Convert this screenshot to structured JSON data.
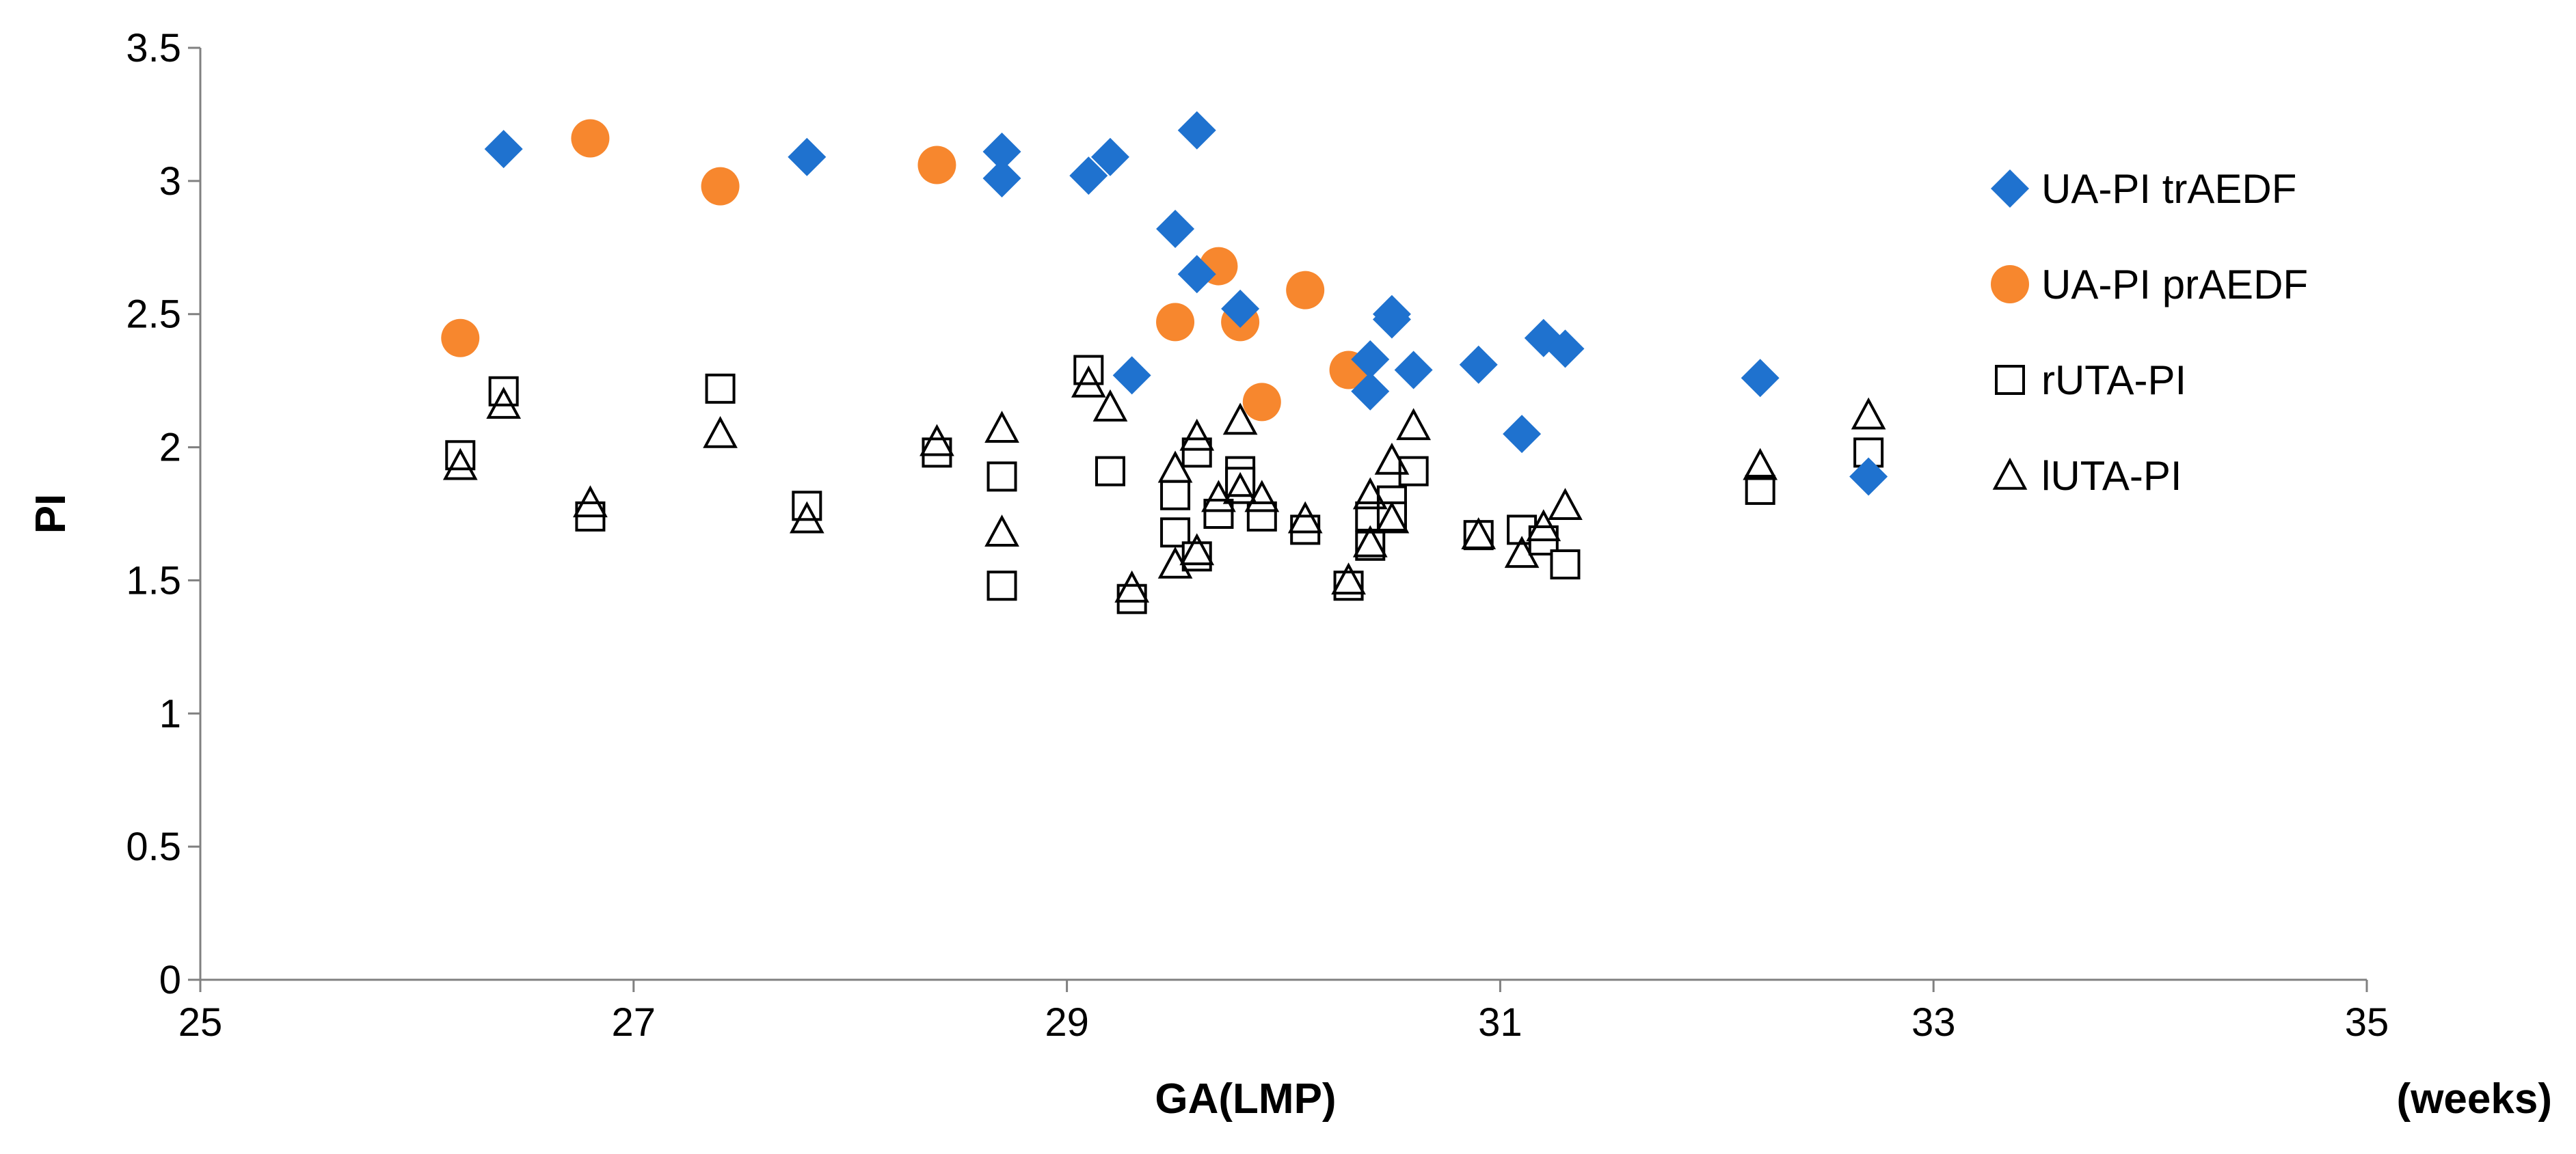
{
  "chart_data": {
    "type": "scatter",
    "title": "",
    "xlabel": "GA(LMP)",
    "xlabel_unit": "(weeks)",
    "ylabel": "PI",
    "xlim": [
      25,
      35
    ],
    "ylim": [
      0,
      3.5
    ],
    "x_ticks": [
      25,
      27,
      29,
      31,
      33,
      35
    ],
    "y_ticks": [
      0,
      0.5,
      1,
      1.5,
      2,
      2.5,
      3,
      3.5
    ],
    "x_tick_labels": [
      "25",
      "27",
      "29",
      "31",
      "33",
      "35"
    ],
    "y_tick_labels": [
      "0",
      "0.5",
      "1",
      "1.5",
      "2",
      "2.5",
      "3",
      "3.5"
    ],
    "grid": false,
    "legend_position": "right",
    "series": [
      {
        "name": "UA-PI trAEDF",
        "marker": "diamond",
        "color": "#1F72CF",
        "filled": true,
        "points": [
          [
            26.4,
            3.12
          ],
          [
            27.8,
            3.09
          ],
          [
            28.7,
            3.11
          ],
          [
            28.7,
            3.01
          ],
          [
            29.1,
            3.02
          ],
          [
            29.2,
            3.09
          ],
          [
            29.3,
            2.27
          ],
          [
            29.5,
            2.82
          ],
          [
            29.6,
            3.19
          ],
          [
            29.6,
            2.65
          ],
          [
            29.8,
            2.52
          ],
          [
            30.4,
            2.33
          ],
          [
            30.4,
            2.21
          ],
          [
            30.5,
            2.5
          ],
          [
            30.5,
            2.48
          ],
          [
            30.6,
            2.29
          ],
          [
            30.9,
            2.31
          ],
          [
            31.1,
            2.05
          ],
          [
            31.2,
            2.41
          ],
          [
            31.3,
            2.37
          ],
          [
            32.2,
            2.26
          ],
          [
            32.7,
            1.89
          ]
        ]
      },
      {
        "name": "UA-PI prAEDF",
        "marker": "circle",
        "color": "#F7872E",
        "filled": true,
        "points": [
          [
            26.2,
            2.41
          ],
          [
            26.8,
            3.16
          ],
          [
            27.4,
            2.98
          ],
          [
            28.4,
            3.06
          ],
          [
            29.5,
            2.47
          ],
          [
            29.7,
            2.68
          ],
          [
            29.8,
            2.47
          ],
          [
            29.9,
            2.17
          ],
          [
            30.1,
            2.59
          ],
          [
            30.3,
            2.29
          ]
        ]
      },
      {
        "name": "rUTA-PI",
        "marker": "square",
        "color": "#000000",
        "filled": false,
        "points": [
          [
            26.2,
            1.97
          ],
          [
            26.4,
            2.21
          ],
          [
            26.8,
            1.74
          ],
          [
            27.4,
            2.22
          ],
          [
            27.8,
            1.78
          ],
          [
            28.4,
            1.98
          ],
          [
            28.7,
            1.89
          ],
          [
            28.7,
            1.48
          ],
          [
            29.1,
            2.29
          ],
          [
            29.2,
            1.91
          ],
          [
            29.3,
            1.43
          ],
          [
            29.5,
            1.82
          ],
          [
            29.5,
            1.68
          ],
          [
            29.6,
            1.98
          ],
          [
            29.6,
            1.59
          ],
          [
            29.7,
            1.75
          ],
          [
            29.8,
            1.91
          ],
          [
            29.8,
            1.87
          ],
          [
            29.9,
            1.74
          ],
          [
            30.1,
            1.69
          ],
          [
            30.3,
            1.48
          ],
          [
            30.4,
            1.74
          ],
          [
            30.4,
            1.63
          ],
          [
            30.5,
            1.8
          ],
          [
            30.5,
            1.74
          ],
          [
            30.6,
            1.91
          ],
          [
            30.9,
            1.67
          ],
          [
            31.1,
            1.69
          ],
          [
            31.2,
            1.65
          ],
          [
            31.3,
            1.56
          ],
          [
            32.2,
            1.84
          ],
          [
            32.7,
            1.98
          ]
        ]
      },
      {
        "name": "lUTA-PI",
        "marker": "triangle",
        "color": "#000000",
        "filled": false,
        "points": [
          [
            26.2,
            1.93
          ],
          [
            26.4,
            2.16
          ],
          [
            26.8,
            1.79
          ],
          [
            27.4,
            2.05
          ],
          [
            27.8,
            1.73
          ],
          [
            28.4,
            2.02
          ],
          [
            28.7,
            2.07
          ],
          [
            28.7,
            1.68
          ],
          [
            29.1,
            2.24
          ],
          [
            29.2,
            2.15
          ],
          [
            29.3,
            1.47
          ],
          [
            29.5,
            1.92
          ],
          [
            29.5,
            1.56
          ],
          [
            29.6,
            2.04
          ],
          [
            29.6,
            1.61
          ],
          [
            29.7,
            1.81
          ],
          [
            29.8,
            2.1
          ],
          [
            29.8,
            1.84
          ],
          [
            29.9,
            1.81
          ],
          [
            30.1,
            1.73
          ],
          [
            30.3,
            1.5
          ],
          [
            30.4,
            1.82
          ],
          [
            30.4,
            1.64
          ],
          [
            30.5,
            1.95
          ],
          [
            30.5,
            1.73
          ],
          [
            30.6,
            2.08
          ],
          [
            30.9,
            1.67
          ],
          [
            31.1,
            1.6
          ],
          [
            31.2,
            1.7
          ],
          [
            31.3,
            1.78
          ],
          [
            32.2,
            1.93
          ],
          [
            32.7,
            2.12
          ]
        ]
      }
    ]
  }
}
